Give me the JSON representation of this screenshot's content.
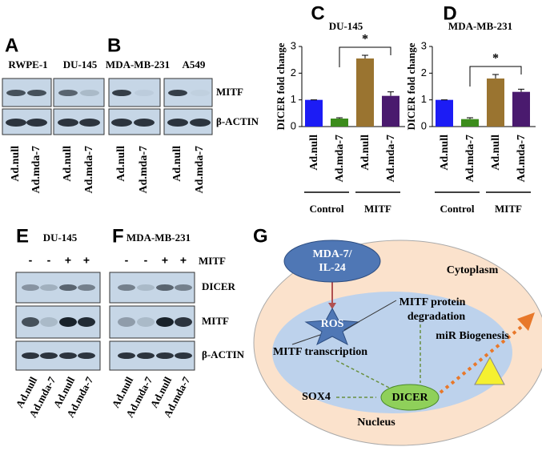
{
  "blots_top": {
    "letters": [
      "A",
      "B"
    ],
    "cell_lines": [
      "RWPE-1",
      "DU-145",
      "MDA-MB-231",
      "A549"
    ],
    "rows": [
      "MITF",
      "β-ACTIN"
    ],
    "lanes": [
      [
        "Ad.null",
        "Ad.mda-7"
      ],
      [
        "Ad.null",
        "Ad.mda-7"
      ],
      [
        "Ad.null",
        "Ad.mda-7"
      ],
      [
        "Ad.null",
        "Ad.mda-7"
      ]
    ]
  },
  "blots_bottom": {
    "letters": [
      "E",
      "F"
    ],
    "cell_lines": [
      "DU-145",
      "MDA-MB-231"
    ],
    "treatment_label": "MITF",
    "treatment": [
      [
        "-",
        "-",
        "+",
        "+"
      ],
      [
        "-",
        "-",
        "+",
        "+"
      ]
    ],
    "rows": [
      "DICER",
      "MITF",
      "β-ACTIN"
    ],
    "lanes": [
      [
        "Ad.null",
        "Ad.mda-7",
        "Ad.null",
        "Ad.mda-7"
      ],
      [
        "Ad.null",
        "Ad.mda-7",
        "Ad.null",
        "Ad.mda-7"
      ]
    ]
  },
  "chart_data": [
    {
      "type": "bar",
      "letter": "C",
      "title": "DU-145",
      "ylabel": "DICER fold change",
      "categories": [
        "Ad.null",
        "Ad.mda-7",
        "Ad.null",
        "Ad.mda-7"
      ],
      "values": [
        1.0,
        0.3,
        2.55,
        1.15
      ],
      "errors": [
        0,
        0.03,
        0.12,
        0.15
      ],
      "colors": [
        "#1c1cf5",
        "#3c8c1c",
        "#9a7430",
        "#4a1a6e"
      ],
      "group_labels": [
        "Control",
        "MITF"
      ],
      "annotation": "*",
      "ylim": [
        0,
        3
      ],
      "yticks": [
        0,
        1,
        2,
        3
      ]
    },
    {
      "type": "bar",
      "letter": "D",
      "title": "MDA-MB-231",
      "ylabel": "DICER fold change",
      "categories": [
        "Ad.null",
        "Ad.mda-7",
        "Ad.null",
        "Ad.mda-7"
      ],
      "values": [
        1.0,
        0.28,
        1.8,
        1.3
      ],
      "errors": [
        0,
        0.05,
        0.15,
        0.1
      ],
      "colors": [
        "#1c1cf5",
        "#3c8c1c",
        "#9a7430",
        "#4a1a6e"
      ],
      "group_labels": [
        "Control",
        "MITF"
      ],
      "annotation": "*",
      "ylim": [
        0,
        3
      ],
      "yticks": [
        0,
        1,
        2,
        3
      ]
    }
  ],
  "diagram": {
    "letter": "G",
    "nodes": [
      "MDA-7/",
      "IL-24",
      "ROS",
      "Cytoplasm",
      "miR Biogenesis",
      "MITF protein",
      "degradation",
      "MITF transcription",
      "DICER",
      "SOX4",
      "Nucleus"
    ]
  }
}
